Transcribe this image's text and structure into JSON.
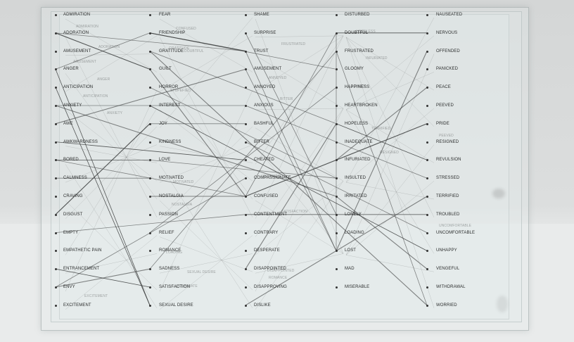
{
  "columns": [
    {
      "id": "c1",
      "words": [
        "ADMIRATION",
        "ADORATION",
        "AMUSEMENT",
        "ANGER",
        "ANTICIPATION",
        "ANXIETY",
        "AWE",
        "AWKWARDNESS",
        "BORED",
        "CALMNESS",
        "CRAVING",
        "DISGUST",
        "EMPTY",
        "EMPATHETIC PAIN",
        "ENTRANCEMENT",
        "ENVY",
        "EXCITEMENT"
      ]
    },
    {
      "id": "c2",
      "words": [
        "FEAR",
        "FRIENDSHIP",
        "GRATITUDE",
        "GUILT",
        "HORROR",
        "INTEREST",
        "JOY",
        "KINDNESS",
        "LOVE",
        "MOTIVATED",
        "NOSTALGIA",
        "PASSION",
        "RELIEF",
        "ROMANCE",
        "SADNESS",
        "SATISFACTION",
        "SEXUAL DESIRE"
      ]
    },
    {
      "id": "c3",
      "words": [
        "SHAME",
        "SURPRISE",
        "TRUST",
        "AMUSEMENT",
        "ANNOYED",
        "ANXIOUS",
        "BASHFUL",
        "BITTER",
        "CHEATED",
        "COMPASSIONATE",
        "CONFUSED",
        "CONTENTMENT",
        "CONTRARY",
        "DESPERATE",
        "DISAPPOINTED",
        "DISAPPROVING",
        "DISLIKE"
      ]
    },
    {
      "id": "c4",
      "words": [
        "DISTURBED",
        "DOUBTFUL",
        "FRUSTRATED",
        "GLOOMY",
        "HAPPINESS",
        "HEARTBROKEN",
        "HOPELESS",
        "INADEQUATE",
        "INFURIATED",
        "INSULTED",
        "IRRITATED",
        "LONELY",
        "LOADING",
        "LOST",
        "MAD",
        "MISERABLE"
      ]
    },
    {
      "id": "c5",
      "words": [
        "NAUSEATED",
        "NERVOUS",
        "OFFENDED",
        "PANICKED",
        "PEACE",
        "PEEVED",
        "PRIDE",
        "RESIGNED",
        "REVULSION",
        "STRESSED",
        "TERRIFIED",
        "TROUBLED",
        "UNCOMFORTABLE",
        "UNHAPPY",
        "VENGEFUL",
        "WITHDRAWAL",
        "WORRIED"
      ]
    }
  ],
  "ghost_words": [
    "ADMIRATION",
    "ADORATION",
    "AMUSEMENT",
    "ANGER",
    "ANTICIPATION",
    "ANXIETY",
    "CONFUSED",
    "DOUBTFUL",
    "STUPEFIED",
    "FRUSTRATED",
    "ANNOYED",
    "BITTER",
    "HOPELESS",
    "INFURIATED",
    "LONELY",
    "TERRIFIED",
    "RESIGNED",
    "VENGEFUL",
    "SATISFACTION",
    "SEXUAL DESIRE",
    "DESPERATE",
    "DISAPPOINTED",
    "ROMANCE",
    "LOADING",
    "GRATITUDE",
    "PEEVED",
    "UNCOMFORTABLE",
    "EXCITEMENT",
    "NOSTALGIA",
    "MOTIVATED"
  ],
  "colors": {
    "ink": "#2a2c2c",
    "line": "#3a3c3c",
    "panel_edge": "#96a0a0",
    "floor": "#e9ebeb",
    "wall": "#d6d8d8"
  }
}
